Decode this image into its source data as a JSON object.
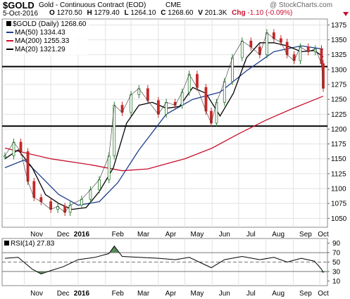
{
  "header": {
    "symbol": "$GOLD",
    "description": "Gold - Continuous Contract (EOD)",
    "exchange": "CME",
    "copyright": "@ StockCharts.com",
    "date": "5-Oct-2016",
    "quote": {
      "open_label": "O",
      "open": "1270.50",
      "high_label": "H",
      "high": "1279.40",
      "low_label": "L",
      "low": "1264.10",
      "close_label": "C",
      "close": "1268.60",
      "volume_label": "V",
      "volume": "201.3K",
      "change_label": "Chg",
      "change": "-1.10 (-0.09%)"
    }
  },
  "legend": {
    "main": "$GOLD (Daily) 1268.60",
    "ma50": "MA(50) 1334.43",
    "ma200": "MA(200) 1255.33",
    "ma20": "MA(20) 1321.29"
  },
  "rsi_label": "RSI(14) 27.83",
  "colors": {
    "price_up": "#2e7d32",
    "price_down": "#c62828",
    "ma50": "#1f3f8f",
    "ma200": "#c8102e",
    "ma20": "#000000",
    "rsi_fill": "#5a8a5a",
    "support_line": "#000000",
    "change_negative": "#c8102e"
  },
  "chart_data": [
    {
      "type": "line",
      "title": "$GOLD (Daily) 1268.60",
      "x_range": [
        "2015-10-10",
        "2016-10-05"
      ],
      "ylim": [
        1035,
        1385
      ],
      "y_ticks": [
        1050,
        1075,
        1100,
        1125,
        1150,
        1175,
        1200,
        1225,
        1250,
        1275,
        1300,
        1325,
        1350,
        1375
      ],
      "x_tick_labels": [
        "Nov",
        "Dec",
        "2016",
        "Feb",
        "Mar",
        "Apr",
        "May",
        "Jun",
        "Jul",
        "Aug",
        "Sep",
        "Oct"
      ],
      "horizontal_lines": [
        1305,
        1205
      ],
      "price_series": {
        "name": "$GOLD",
        "x": [
          "2015-10-10",
          "2015-10-20",
          "2015-10-28",
          "2015-11-05",
          "2015-11-12",
          "2015-11-20",
          "2015-12-01",
          "2015-12-09",
          "2015-12-17",
          "2015-12-23",
          "2016-01-05",
          "2016-01-15",
          "2016-01-25",
          "2016-02-05",
          "2016-02-11",
          "2016-02-20",
          "2016-03-01",
          "2016-03-10",
          "2016-03-20",
          "2016-04-01",
          "2016-04-10",
          "2016-04-20",
          "2016-04-28",
          "2016-05-06",
          "2016-05-15",
          "2016-05-25",
          "2016-05-31",
          "2016-06-06",
          "2016-06-15",
          "2016-06-24",
          "2016-07-05",
          "2016-07-15",
          "2016-07-25",
          "2016-08-02",
          "2016-08-10",
          "2016-08-18",
          "2016-08-25",
          "2016-09-02",
          "2016-09-09",
          "2016-09-18",
          "2016-09-26",
          "2016-10-03",
          "2016-10-05"
        ],
        "values": [
          1155,
          1178,
          1162,
          1112,
          1085,
          1078,
          1065,
          1070,
          1060,
          1072,
          1082,
          1098,
          1115,
          1155,
          1240,
          1228,
          1258,
          1268,
          1248,
          1225,
          1245,
          1240,
          1262,
          1292,
          1270,
          1230,
          1210,
          1245,
          1280,
          1320,
          1348,
          1338,
          1325,
          1362,
          1352,
          1346,
          1325,
          1315,
          1338,
          1330,
          1335,
          1310,
          1268.6
        ]
      },
      "series": [
        {
          "name": "MA(50)",
          "x": [
            "2015-10-10",
            "2015-11-01",
            "2015-11-20",
            "2015-12-10",
            "2016-01-01",
            "2016-01-25",
            "2016-02-15",
            "2016-03-10",
            "2016-04-10",
            "2016-05-10",
            "2016-06-10",
            "2016-07-10",
            "2016-08-10",
            "2016-09-10",
            "2016-10-05"
          ],
          "values": [
            1135,
            1148,
            1120,
            1090,
            1072,
            1078,
            1110,
            1165,
            1225,
            1250,
            1262,
            1298,
            1330,
            1340,
            1334.43
          ]
        },
        {
          "name": "MA(200)",
          "x": [
            "2015-10-10",
            "2015-12-01",
            "2016-01-15",
            "2016-02-20",
            "2016-03-20",
            "2016-05-01",
            "2016-06-01",
            "2016-07-01",
            "2016-08-01",
            "2016-09-01",
            "2016-10-05"
          ],
          "values": [
            1168,
            1150,
            1140,
            1130,
            1133,
            1150,
            1168,
            1192,
            1215,
            1235,
            1255.33
          ]
        },
        {
          "name": "MA(20)",
          "x": [
            "2015-10-10",
            "2015-10-25",
            "2015-11-10",
            "2015-11-25",
            "2015-12-10",
            "2015-12-25",
            "2016-01-10",
            "2016-01-25",
            "2016-02-10",
            "2016-02-25",
            "2016-03-10",
            "2016-03-25",
            "2016-04-10",
            "2016-04-25",
            "2016-05-10",
            "2016-05-25",
            "2016-06-10",
            "2016-06-25",
            "2016-07-10",
            "2016-07-25",
            "2016-08-10",
            "2016-08-25",
            "2016-09-10",
            "2016-09-25",
            "2016-10-05"
          ],
          "values": [
            1150,
            1165,
            1135,
            1090,
            1075,
            1065,
            1068,
            1095,
            1135,
            1210,
            1240,
            1245,
            1235,
            1238,
            1270,
            1260,
            1222,
            1260,
            1320,
            1345,
            1345,
            1340,
            1330,
            1332,
            1321.29
          ]
        }
      ]
    },
    {
      "type": "line",
      "title": "RSI(14) 27.83",
      "x_range": [
        "2015-10-10",
        "2016-10-05"
      ],
      "ylim": [
        0,
        100
      ],
      "y_ticks": [
        10,
        30,
        50,
        70,
        90
      ],
      "reference_lines": [
        30,
        50,
        70
      ],
      "x_tick_labels": [
        "Nov",
        "Dec",
        "2016",
        "Feb",
        "Mar",
        "Apr",
        "May",
        "Jun",
        "Jul",
        "Aug",
        "Sep",
        "Oct"
      ],
      "series": [
        {
          "name": "RSI(14)",
          "x": [
            "2015-10-10",
            "2015-10-25",
            "2015-11-10",
            "2015-11-20",
            "2015-12-01",
            "2015-12-15",
            "2016-01-01",
            "2016-01-20",
            "2016-02-05",
            "2016-02-11",
            "2016-02-20",
            "2016-03-10",
            "2016-04-01",
            "2016-04-20",
            "2016-05-06",
            "2016-05-31",
            "2016-06-15",
            "2016-07-05",
            "2016-07-25",
            "2016-08-10",
            "2016-08-25",
            "2016-09-10",
            "2016-09-25",
            "2016-10-03",
            "2016-10-05"
          ],
          "values": [
            58,
            60,
            35,
            25,
            32,
            40,
            55,
            60,
            68,
            84,
            62,
            60,
            58,
            55,
            60,
            38,
            55,
            62,
            55,
            60,
            50,
            58,
            52,
            35,
            27.83
          ]
        }
      ]
    }
  ]
}
